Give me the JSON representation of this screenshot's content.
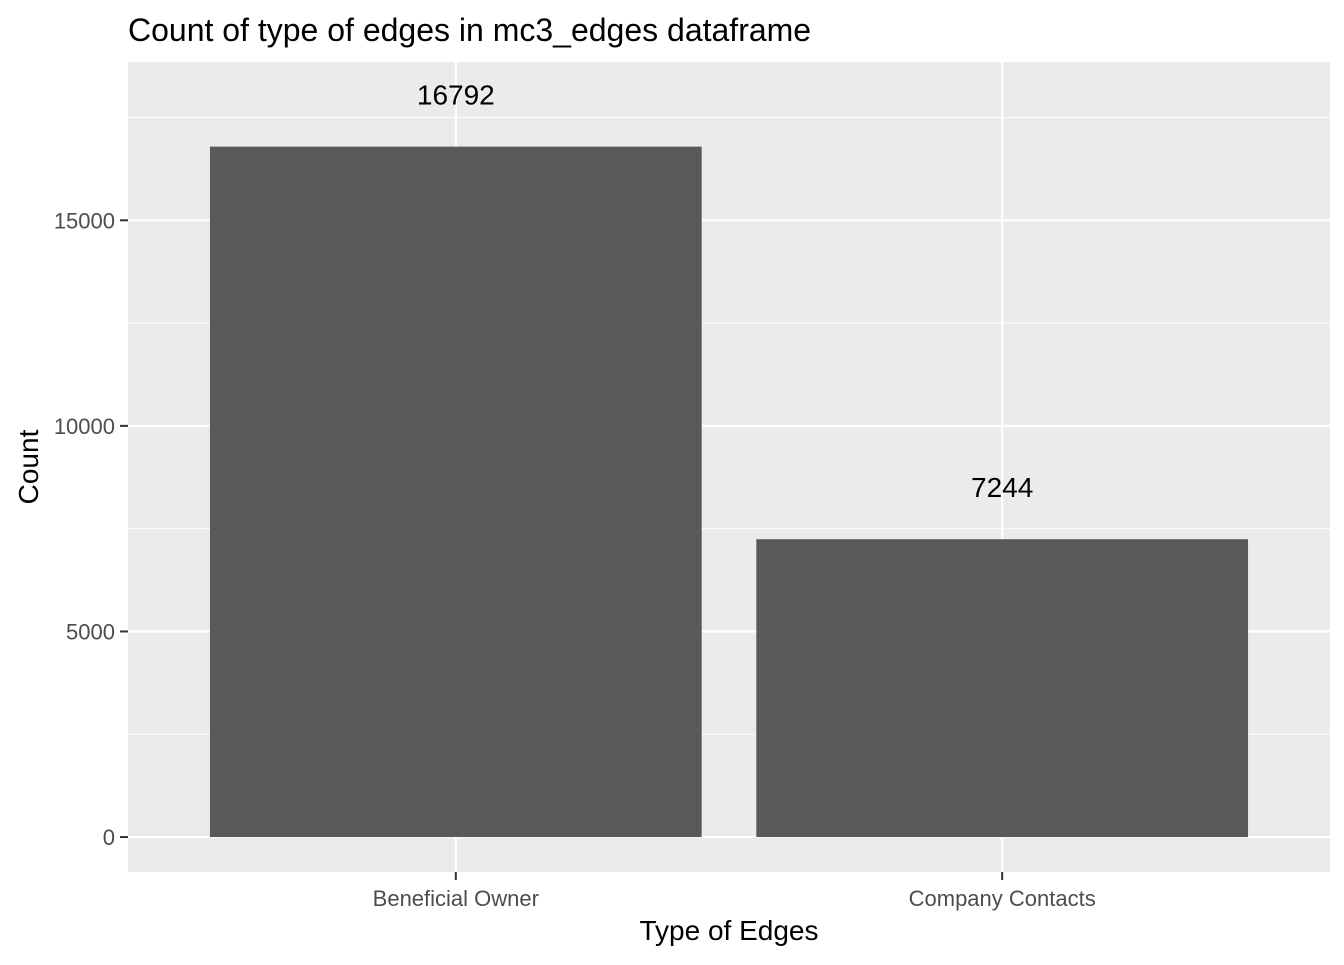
{
  "chart_data": {
    "type": "bar",
    "title": "Count of type of edges in mc3_edges dataframe",
    "xlabel": "Type of Edges",
    "ylabel": "Count",
    "categories": [
      "Beneficial Owner",
      "Company Contacts"
    ],
    "values": [
      16792,
      7244
    ],
    "data_labels": [
      "16792",
      "7244"
    ],
    "ylim": [
      -850,
      18850
    ],
    "yticks": [
      0,
      5000,
      10000,
      15000
    ],
    "ytick_labels": [
      "0",
      "5000",
      "10000",
      "15000"
    ],
    "grid": true,
    "legend": "none",
    "colors": {
      "bar": "#595959",
      "panel": "#ebebeb",
      "grid": "#ffffff",
      "axis_text": "#4d4d4d",
      "text": "#000000"
    }
  }
}
